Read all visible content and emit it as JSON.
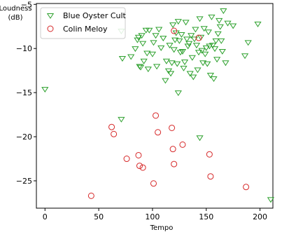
{
  "chart_data": {
    "type": "scatter",
    "title": "",
    "xlabel": "Tempo",
    "ylabel_line1": "Loudness",
    "ylabel_line2": "(dB)",
    "xlim": [
      -8,
      212
    ],
    "ylim": [
      -28.1,
      -4.9
    ],
    "xticks": [
      0,
      50,
      100,
      150,
      200
    ],
    "yticks": [
      -25,
      -20,
      -15,
      -10,
      -5
    ],
    "grid": false,
    "legend_position": "top-left",
    "series": [
      {
        "name": "Blue Oyster Cult",
        "marker": "triangle-down",
        "color": "#2ca02c",
        "points": [
          [
            0,
            -14.6
          ],
          [
            71,
            -8.0
          ],
          [
            72,
            -11.1
          ],
          [
            71,
            -18.0
          ],
          [
            80,
            -10.9
          ],
          [
            84,
            -10.0
          ],
          [
            86,
            -9.0
          ],
          [
            87,
            -8.7
          ],
          [
            88,
            -12.0
          ],
          [
            89,
            -12.1
          ],
          [
            90,
            -8.5
          ],
          [
            91,
            -9.4
          ],
          [
            92,
            -11.4
          ],
          [
            94,
            -7.9
          ],
          [
            95,
            -10.5
          ],
          [
            96,
            -12.3
          ],
          [
            97,
            -7.9
          ],
          [
            100,
            -10.6
          ],
          [
            101,
            -9.3
          ],
          [
            103,
            -8.5
          ],
          [
            104,
            -12.0
          ],
          [
            106,
            -7.8
          ],
          [
            108,
            -9.9
          ],
          [
            110,
            -8.8
          ],
          [
            112,
            -13.6
          ],
          [
            113,
            -11.4
          ],
          [
            115,
            -12.5
          ],
          [
            116,
            -9.6
          ],
          [
            117,
            -12.8
          ],
          [
            118,
            -11.6
          ],
          [
            119,
            -7.3
          ],
          [
            120,
            -10.1
          ],
          [
            121,
            -9.0
          ],
          [
            122,
            -8.2
          ],
          [
            123,
            -11.7
          ],
          [
            124,
            -6.9
          ],
          [
            124,
            -15.0
          ],
          [
            125,
            -9.1
          ],
          [
            126,
            -10.4
          ],
          [
            127,
            -8.4
          ],
          [
            128,
            -10.3
          ],
          [
            129,
            -12.2
          ],
          [
            130,
            -11.5
          ],
          [
            131,
            -7.0
          ],
          [
            132,
            -8.9
          ],
          [
            133,
            -9.7
          ],
          [
            134,
            -9.4
          ],
          [
            135,
            -12.8
          ],
          [
            136,
            -8.5
          ],
          [
            137,
            -11.0
          ],
          [
            138,
            -13.2
          ],
          [
            139,
            -8.9
          ],
          [
            140,
            -7.8
          ],
          [
            141,
            -9.6
          ],
          [
            142,
            -12.4
          ],
          [
            143,
            -10.4
          ],
          [
            144,
            -6.6
          ],
          [
            144,
            -20.1
          ],
          [
            145,
            -8.7
          ],
          [
            146,
            -10.2
          ],
          [
            147,
            -11.6
          ],
          [
            148,
            -7.7
          ],
          [
            149,
            -10.6
          ],
          [
            150,
            -9.9
          ],
          [
            151,
            -11.7
          ],
          [
            152,
            -8.1
          ],
          [
            153,
            -9.7
          ],
          [
            154,
            -13.0
          ],
          [
            155,
            -6.4
          ],
          [
            156,
            -9.6
          ],
          [
            157,
            -13.4
          ],
          [
            158,
            -10.0
          ],
          [
            159,
            -9.1
          ],
          [
            160,
            -11.2
          ],
          [
            161,
            -8.3
          ],
          [
            162,
            -6.8
          ],
          [
            163,
            -7.5
          ],
          [
            164,
            -9.1
          ],
          [
            165,
            -10.3
          ],
          [
            166,
            -5.7
          ],
          [
            168,
            -11.6
          ],
          [
            170,
            -7.1
          ],
          [
            175,
            -7.4
          ],
          [
            186,
            -10.8
          ],
          [
            189,
            -9.3
          ],
          [
            198,
            -7.2
          ],
          [
            210,
            -27.1
          ]
        ]
      },
      {
        "name": "Colin Meloy",
        "marker": "circle",
        "color": "#d62728",
        "points": [
          [
            43,
            -26.7
          ],
          [
            62,
            -18.9
          ],
          [
            64,
            -19.7
          ],
          [
            76,
            -22.5
          ],
          [
            87,
            -22.1
          ],
          [
            88,
            -23.3
          ],
          [
            91,
            -23.5
          ],
          [
            101,
            -25.3
          ],
          [
            103,
            -17.6
          ],
          [
            105,
            -19.5
          ],
          [
            120,
            -8.0
          ],
          [
            118,
            -19.0
          ],
          [
            119,
            -21.4
          ],
          [
            120,
            -23.1
          ],
          [
            128,
            -20.9
          ],
          [
            143,
            -8.8
          ],
          [
            153,
            -22.0
          ],
          [
            154,
            -24.5
          ],
          [
            187,
            -25.7
          ]
        ]
      }
    ]
  }
}
